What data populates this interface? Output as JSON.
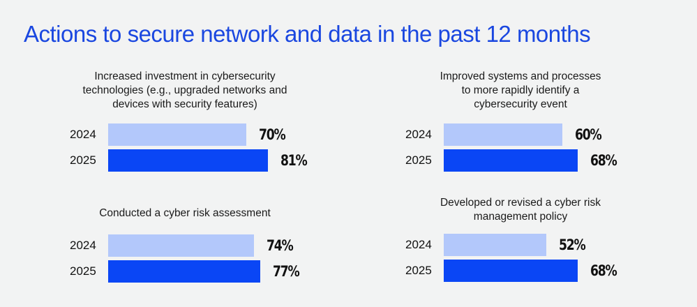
{
  "chart_data": {
    "type": "bar",
    "title": "Actions to secure network and data in the past 12 months",
    "orientation": "horizontal",
    "unit": "%",
    "series_names": [
      "2024",
      "2025"
    ],
    "colors": {
      "2024": "#b3c8fb",
      "2025": "#0a46f5"
    },
    "panels": [
      {
        "title_lines": [
          "Increased investment in cybersecurity",
          "technologies (e.g., upgraded networks and",
          "devices with security features)"
        ],
        "rows": [
          {
            "year": "2024",
            "value": 70,
            "label": "70%"
          },
          {
            "year": "2025",
            "value": 81,
            "label": "81%"
          }
        ]
      },
      {
        "title_lines": [
          "Improved systems and processes",
          "to more rapidly identify a",
          "cybersecurity event"
        ],
        "rows": [
          {
            "year": "2024",
            "value": 60,
            "label": "60%"
          },
          {
            "year": "2025",
            "value": 68,
            "label": "68%"
          }
        ]
      },
      {
        "title_lines": [
          "Conducted a cyber risk assessment"
        ],
        "rows": [
          {
            "year": "2024",
            "value": 74,
            "label": "74%"
          },
          {
            "year": "2025",
            "value": 77,
            "label": "77%"
          }
        ]
      },
      {
        "title_lines": [
          "Developed or revised a cyber risk",
          "management policy"
        ],
        "rows": [
          {
            "year": "2024",
            "value": 52,
            "label": "52%"
          },
          {
            "year": "2025",
            "value": 68,
            "label": "68%"
          }
        ]
      }
    ]
  }
}
